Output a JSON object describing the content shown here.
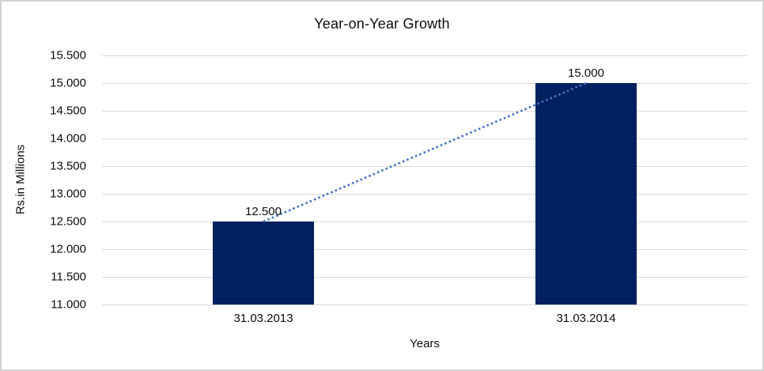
{
  "chart_data": {
    "type": "bar",
    "title": "Year-on-Year Growth",
    "xlabel": "Years",
    "ylabel": "Rs.in Millions",
    "categories": [
      "31.03.2013",
      "31.03.2014"
    ],
    "values": [
      12500,
      15000
    ],
    "value_labels": [
      "12.500",
      "15.000"
    ],
    "ylim": [
      11000,
      15500
    ],
    "y_ticks": [
      {
        "value": 11000,
        "label": "11.000"
      },
      {
        "value": 11500,
        "label": "11.500"
      },
      {
        "value": 12000,
        "label": "12.000"
      },
      {
        "value": 12500,
        "label": "12.500"
      },
      {
        "value": 13000,
        "label": "13.000"
      },
      {
        "value": 13500,
        "label": "13.500"
      },
      {
        "value": 14000,
        "label": "14.000"
      },
      {
        "value": 14500,
        "label": "14.500"
      },
      {
        "value": 15000,
        "label": "15.000"
      },
      {
        "value": 15500,
        "label": "15.500"
      }
    ],
    "grid": true,
    "legend": "none",
    "trendline": {
      "style": "dotted",
      "color": "#4472c4"
    },
    "colors": {
      "bar": "#002060",
      "gridline": "#d9d9d9",
      "text": "#0d0d0d",
      "frame_border": "#d2d2d2"
    }
  }
}
